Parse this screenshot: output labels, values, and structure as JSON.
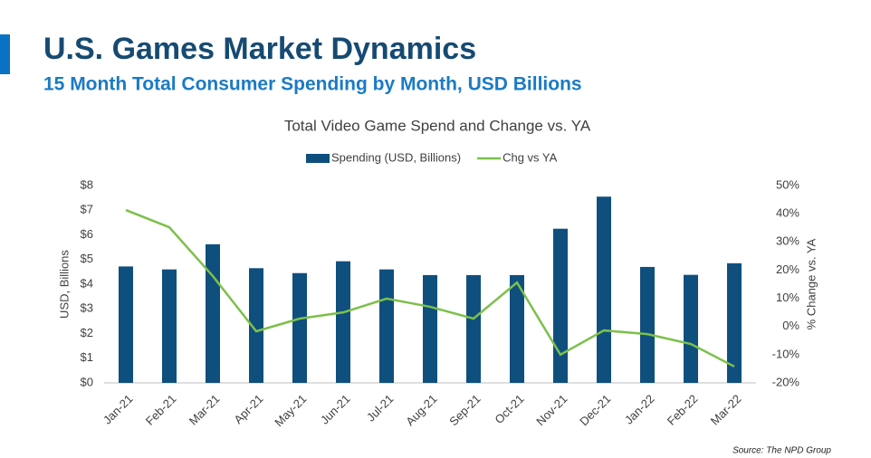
{
  "header": {
    "title": "U.S. Games Market Dynamics",
    "subtitle": "15 Month Total Consumer Spending by Month, USD Billions"
  },
  "source": "Source: The NPD Group",
  "chart_data": {
    "type": "bar",
    "title": "Total Video Game Spend and Change vs. YA",
    "y_label": "USD, Billions",
    "y2_label": "% Change vs. YA",
    "categories": [
      "Jan-21",
      "Feb-21",
      "Mar-21",
      "Apr-21",
      "May-21",
      "Jun-21",
      "Jul-21",
      "Aug-21",
      "Sep-21",
      "Oct-21",
      "Nov-21",
      "Dec-21",
      "Jan-22",
      "Feb-22",
      "Mar-22"
    ],
    "series": [
      {
        "name": "Spending (USD, Billions)",
        "type": "bar",
        "color": "#0f4f7e",
        "values": [
          4.72,
          4.6,
          5.62,
          4.65,
          4.45,
          4.93,
          4.6,
          4.37,
          4.37,
          4.37,
          6.25,
          7.55,
          4.7,
          4.38,
          4.85
        ]
      },
      {
        "name": "Chg vs YA",
        "type": "line",
        "axis": "y2",
        "color": "#7cc04a",
        "values": [
          41.3,
          35.2,
          17.9,
          -1.7,
          2.8,
          5,
          9.9,
          7,
          2.8,
          15.6,
          -10,
          -1.4,
          -2.7,
          -6.2,
          -14.2
        ]
      }
    ],
    "ylim": [
      0,
      8
    ],
    "yticks": [
      {
        "value": 0,
        "label": "$0"
      },
      {
        "value": 1,
        "label": "$1"
      },
      {
        "value": 2,
        "label": "$2"
      },
      {
        "value": 3,
        "label": "$3"
      },
      {
        "value": 4,
        "label": "$4"
      },
      {
        "value": 5,
        "label": "$5"
      },
      {
        "value": 6,
        "label": "$6"
      },
      {
        "value": 7,
        "label": "$7"
      },
      {
        "value": 8,
        "label": "$8"
      }
    ],
    "y2lim": [
      -20,
      50
    ],
    "y2ticks": [
      {
        "value": -20,
        "label": "-20%"
      },
      {
        "value": -10,
        "label": "-10%"
      },
      {
        "value": 0,
        "label": "0%"
      },
      {
        "value": 10,
        "label": "10%"
      },
      {
        "value": 20,
        "label": "20%"
      },
      {
        "value": 30,
        "label": "30%"
      },
      {
        "value": 40,
        "label": "40%"
      },
      {
        "value": 50,
        "label": "50%"
      }
    ],
    "grid": false
  }
}
